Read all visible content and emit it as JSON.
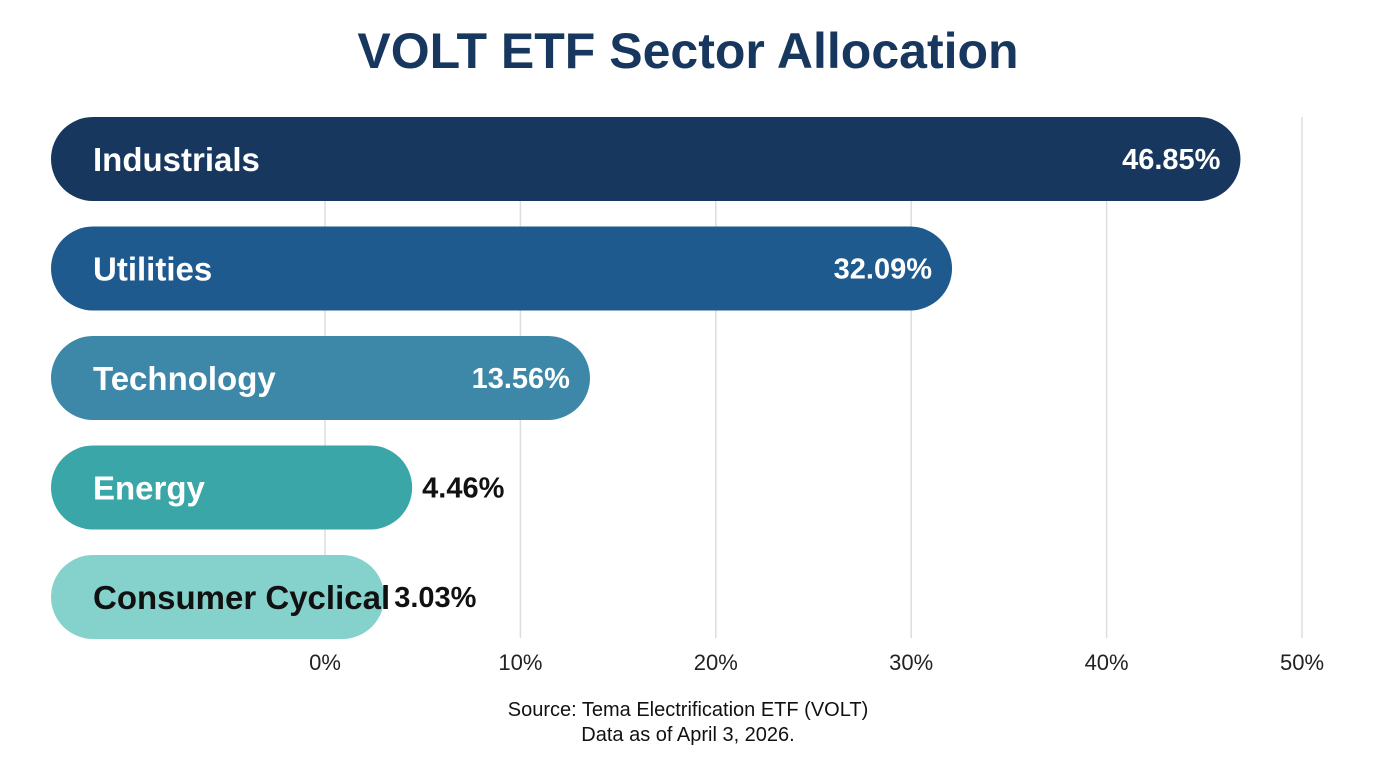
{
  "chart_data": {
    "type": "bar",
    "orientation": "horizontal",
    "title": "VOLT ETF Sector Allocation",
    "categories": [
      "Industrials",
      "Utilities",
      "Technology",
      "Energy",
      "Consumer Cyclical"
    ],
    "values": [
      46.85,
      32.09,
      13.56,
      4.46,
      3.03
    ],
    "value_labels": [
      "46.85%",
      "32.09%",
      "13.56%",
      "4.46%",
      "3.03%"
    ],
    "bar_colors": [
      "#17375e",
      "#1f5a8e",
      "#3d88a8",
      "#3aa6a8",
      "#85d1cc"
    ],
    "label_colors": [
      "#ffffff",
      "#ffffff",
      "#ffffff",
      "#ffffff",
      "#111111"
    ],
    "xlim": [
      0,
      50
    ],
    "xticks": [
      0,
      10,
      20,
      30,
      40,
      50
    ],
    "xtick_labels": [
      "0%",
      "10%",
      "20%",
      "30%",
      "40%",
      "50%"
    ],
    "grid": true,
    "xlabel": "",
    "ylabel": ""
  },
  "source": {
    "line1": "Source: Tema Electrification ETF (VOLT)",
    "line2": "Data as of April 3, 2026."
  }
}
